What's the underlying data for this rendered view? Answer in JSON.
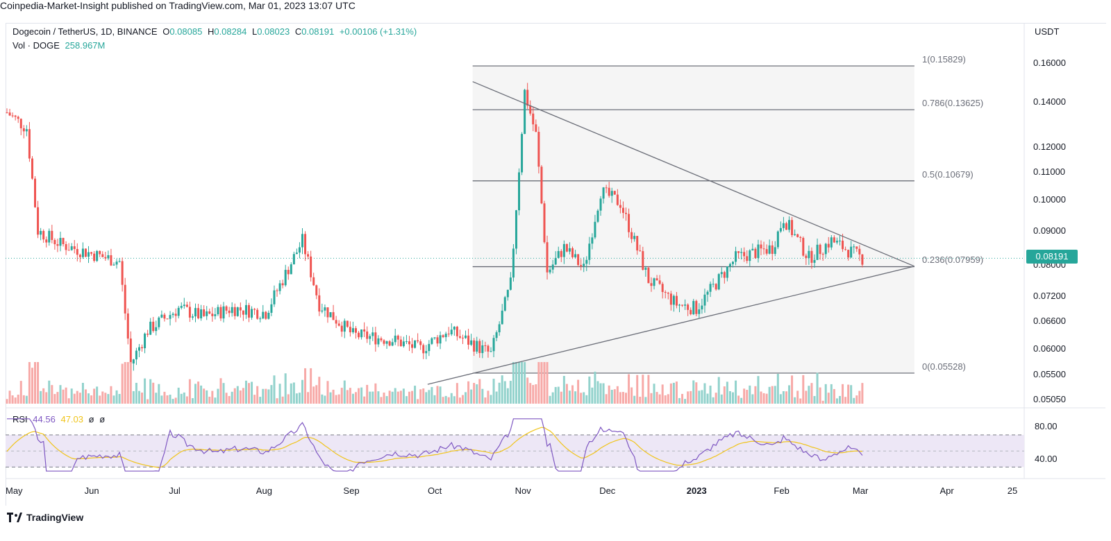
{
  "header": {
    "publisher": "Coinpedia-Market-Insight published on TradingView.com, Mar 01, 2023 13:07 UTC"
  },
  "legend": {
    "symbol": "Dogecoin / TetherUS, 1D, BINANCE",
    "open_label": "O",
    "open": "0.08085",
    "high_label": "H",
    "high": "0.08284",
    "low_label": "L",
    "low": "0.08023",
    "close_label": "C",
    "close": "0.08191",
    "change": "+0.00106 (+1.31%)",
    "vol_label": "Vol · DOGE",
    "vol": "258.967M"
  },
  "rsi_legend": {
    "label": "RSI",
    "rsi": "44.56",
    "ma": "47.03",
    "icon1": "ø",
    "icon2": "ø"
  },
  "price_axis": {
    "currency": "USDT",
    "current_price": "0.08191",
    "ticks": [
      "0.16000",
      "0.14000",
      "0.12000",
      "0.11000",
      "0.10000",
      "0.09000",
      "0.08000",
      "0.07200",
      "0.06600",
      "0.06000",
      "0.05500",
      "0.05050"
    ]
  },
  "rsi_axis": {
    "ticks": [
      "80.00",
      "40.00"
    ]
  },
  "fib_labels": [
    "1(0.15829)",
    "0.786(0.13625)",
    "0.5(0.10679)",
    "0.236(0.07959)",
    "0(0.05528)"
  ],
  "time_axis": [
    "May",
    "Jun",
    "Jul",
    "Aug",
    "Sep",
    "Oct",
    "Nov",
    "Dec",
    "2023",
    "Feb",
    "Mar",
    "Apr",
    "25"
  ],
  "footer": {
    "brand": "TradingView",
    "logo_icon": "tradingview-logo-icon"
  },
  "colors": {
    "up": "#26a69a",
    "down": "#ef5350",
    "rsi": "#7e57c2",
    "rsi_ma": "#f0c419",
    "fib_bg": "#f5f5f5",
    "rsi_band": "#ede7f6"
  },
  "chart_data": {
    "type": "candlestick",
    "title": "Dogecoin / TetherUS, 1D, BINANCE",
    "y_axis": {
      "unit": "USDT",
      "scale": "log",
      "range": [
        0.0505,
        0.168
      ]
    },
    "fibonacci_retracement": [
      {
        "level": 1,
        "price": 0.15829
      },
      {
        "level": 0.786,
        "price": 0.13625
      },
      {
        "level": 0.5,
        "price": 0.10679
      },
      {
        "level": 0.236,
        "price": 0.07959
      },
      {
        "level": 0,
        "price": 0.05528
      }
    ],
    "trendlines": [
      {
        "name": "descending",
        "points": [
          [
            "2022-10-14",
            0.15
          ],
          [
            "2023-03-20",
            0.0797
          ]
        ]
      },
      {
        "name": "ascending",
        "points": [
          [
            "2022-09-28",
            0.0532
          ],
          [
            "2023-03-20",
            0.0797
          ]
        ]
      }
    ],
    "closes_approx": [
      {
        "date": "2022-05-01",
        "close": 0.135
      },
      {
        "date": "2022-05-08",
        "close": 0.128
      },
      {
        "date": "2022-05-12",
        "close": 0.09
      },
      {
        "date": "2022-05-20",
        "close": 0.086
      },
      {
        "date": "2022-06-01",
        "close": 0.083
      },
      {
        "date": "2022-06-10",
        "close": 0.081
      },
      {
        "date": "2022-06-14",
        "close": 0.057
      },
      {
        "date": "2022-06-20",
        "close": 0.064
      },
      {
        "date": "2022-07-01",
        "close": 0.069
      },
      {
        "date": "2022-07-10",
        "close": 0.067
      },
      {
        "date": "2022-07-20",
        "close": 0.069
      },
      {
        "date": "2022-08-01",
        "close": 0.068
      },
      {
        "date": "2022-08-14",
        "close": 0.087
      },
      {
        "date": "2022-08-20",
        "close": 0.07
      },
      {
        "date": "2022-09-01",
        "close": 0.063
      },
      {
        "date": "2022-09-15",
        "close": 0.062
      },
      {
        "date": "2022-09-25",
        "close": 0.06
      },
      {
        "date": "2022-10-05",
        "close": 0.064
      },
      {
        "date": "2022-10-20",
        "close": 0.059
      },
      {
        "date": "2022-10-27",
        "close": 0.075
      },
      {
        "date": "2022-11-01",
        "close": 0.145
      },
      {
        "date": "2022-11-05",
        "close": 0.125
      },
      {
        "date": "2022-11-09",
        "close": 0.078
      },
      {
        "date": "2022-11-15",
        "close": 0.085
      },
      {
        "date": "2022-11-22",
        "close": 0.079
      },
      {
        "date": "2022-11-28",
        "close": 0.103
      },
      {
        "date": "2022-12-05",
        "close": 0.099
      },
      {
        "date": "2022-12-15",
        "close": 0.076
      },
      {
        "date": "2022-12-25",
        "close": 0.07
      },
      {
        "date": "2023-01-01",
        "close": 0.069
      },
      {
        "date": "2023-01-15",
        "close": 0.082
      },
      {
        "date": "2023-01-28",
        "close": 0.085
      },
      {
        "date": "2023-02-01",
        "close": 0.094
      },
      {
        "date": "2023-02-10",
        "close": 0.082
      },
      {
        "date": "2023-02-18",
        "close": 0.087
      },
      {
        "date": "2023-03-01",
        "close": 0.08191
      }
    ],
    "rsi": {
      "period_levels": [
        70,
        30
      ],
      "last": 44.56,
      "ma_last": 47.03,
      "range": [
        20,
        95
      ]
    }
  }
}
